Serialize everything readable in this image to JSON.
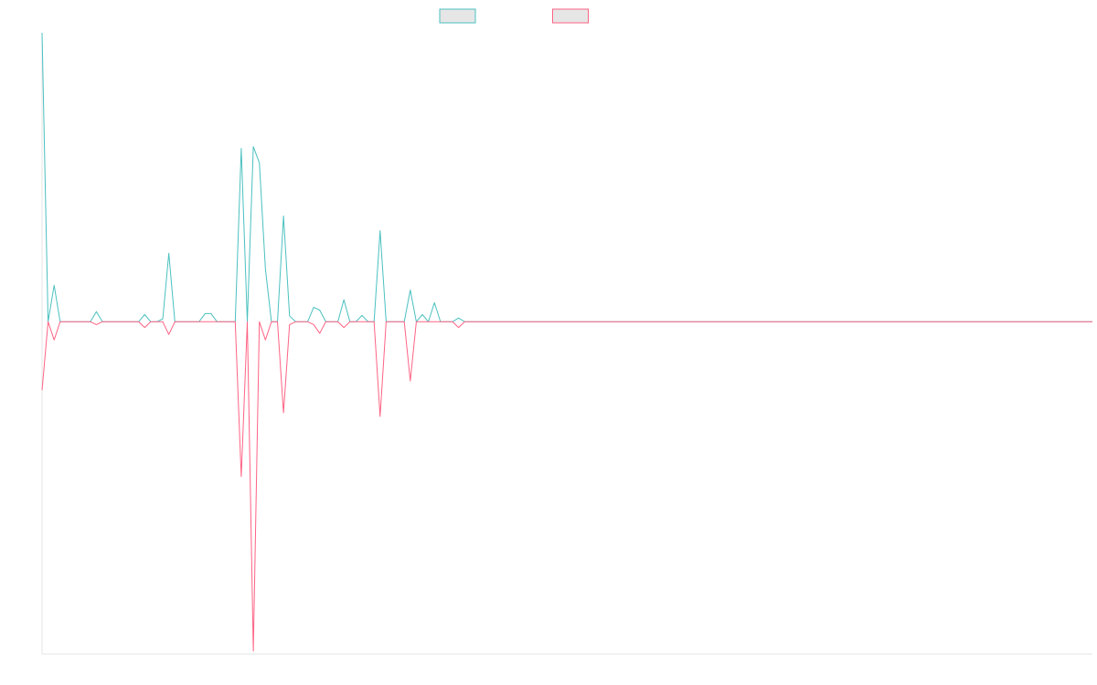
{
  "chart_data": {
    "type": "line",
    "ylim": [
      -1.15,
      1
    ],
    "series": [
      {
        "color": "#4bc0c0",
        "values": [
          1,
          0,
          0.126,
          0,
          0,
          0,
          0,
          0,
          0,
          0.035,
          0,
          0,
          0,
          0,
          0,
          0,
          0,
          0.025,
          0,
          0,
          0.01,
          0.237,
          0,
          0,
          0,
          0,
          0,
          0.028,
          0.028,
          0,
          0,
          0,
          0,
          0.6,
          0,
          0.606,
          0.55,
          0.183,
          0,
          0,
          0.366,
          0.02,
          0,
          0,
          0,
          0.05,
          0.04,
          0,
          0,
          0,
          0.076,
          0,
          0,
          0.022,
          0,
          0,
          0.315,
          0,
          0,
          0,
          0,
          0.11,
          0,
          0.025,
          0,
          0.066,
          0,
          0,
          0,
          0.013,
          0,
          0,
          0,
          0,
          0,
          0,
          0,
          0,
          0,
          0,
          0,
          0,
          0,
          0,
          0,
          0,
          0,
          0,
          0,
          0,
          0,
          0,
          0,
          0,
          0,
          0,
          0,
          0,
          0,
          0,
          0,
          0,
          0,
          0,
          0,
          0,
          0,
          0,
          0,
          0,
          0,
          0,
          0,
          0,
          0,
          0,
          0,
          0,
          0,
          0,
          0,
          0,
          0,
          0,
          0,
          0,
          0,
          0,
          0,
          0,
          0,
          0,
          0,
          0,
          0,
          0,
          0,
          0,
          0,
          0,
          0,
          0,
          0,
          0,
          0,
          0,
          0,
          0,
          0,
          0,
          0,
          0,
          0,
          0,
          0,
          0,
          0,
          0,
          0,
          0,
          0,
          0,
          0,
          0,
          0,
          0,
          0,
          0,
          0,
          0,
          0,
          0,
          0,
          0,
          0
        ]
      },
      {
        "color": "#ff6384",
        "values": [
          -0.237,
          0,
          -0.063,
          0,
          0,
          0,
          0,
          0,
          0,
          -0.01,
          0,
          0,
          0,
          0,
          0,
          0,
          0,
          -0.02,
          0,
          0,
          0,
          -0.044,
          0,
          0,
          0,
          0,
          0,
          0,
          0,
          0,
          0,
          0,
          0,
          -0.536,
          0,
          -1.14,
          0,
          -0.063,
          0,
          0,
          -0.315,
          -0.01,
          0,
          0,
          0,
          -0.01,
          -0.04,
          0,
          0,
          0,
          -0.02,
          0,
          0,
          0,
          0,
          0,
          -0.328,
          0,
          0,
          0,
          0,
          -0.205,
          0,
          0,
          0,
          0,
          0,
          0,
          0,
          -0.02,
          0,
          0,
          0,
          0,
          0,
          0,
          0,
          0,
          0,
          0,
          0,
          0,
          0,
          0,
          0,
          0,
          0,
          0,
          0,
          0,
          0,
          0,
          0,
          0,
          0,
          0,
          0,
          0,
          0,
          0,
          0,
          0,
          0,
          0,
          0,
          0,
          0,
          0,
          0,
          0,
          0,
          0,
          0,
          0,
          0,
          0,
          0,
          0,
          0,
          0,
          0,
          0,
          0,
          0,
          0,
          0,
          0,
          0,
          0,
          0,
          0,
          0,
          0,
          0,
          0,
          0,
          0,
          0,
          0,
          0,
          0,
          0,
          0,
          0,
          0,
          0,
          0,
          0,
          0,
          0,
          0,
          0,
          0,
          0,
          0,
          0,
          0,
          0,
          0,
          0,
          0,
          0,
          0,
          0,
          0,
          0,
          0,
          0,
          0,
          0,
          0,
          0,
          0,
          0,
          0
        ]
      }
    ]
  }
}
